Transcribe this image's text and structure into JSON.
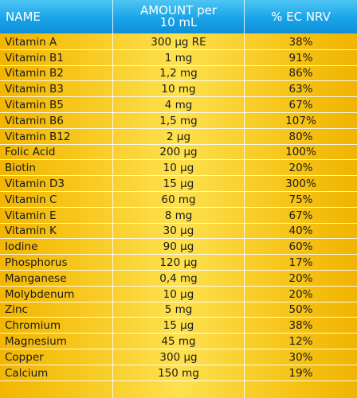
{
  "table": {
    "headers": {
      "name": "NAME",
      "amount": "AMOUNT per\n10 mL",
      "nrv": "% EC NRV"
    },
    "rows": [
      {
        "name": "Vitamin A",
        "amount": "300 µg RE",
        "nrv": "38%"
      },
      {
        "name": "Vitamin B1",
        "amount": "1 mg",
        "nrv": "91%"
      },
      {
        "name": "Vitamin B2",
        "amount": "1,2 mg",
        "nrv": "86%"
      },
      {
        "name": "Vitamin B3",
        "amount": "10 mg",
        "nrv": "63%"
      },
      {
        "name": "Vitamin B5",
        "amount": "4 mg",
        "nrv": "67%"
      },
      {
        "name": "Vitamin B6",
        "amount": "1,5 mg",
        "nrv": "107%"
      },
      {
        "name": "Vitamin B12",
        "amount": "2 µg",
        "nrv": "80%"
      },
      {
        "name": "Folic Acid",
        "amount": "200 µg",
        "nrv": "100%"
      },
      {
        "name": "Biotin",
        "amount": "10 µg",
        "nrv": "20%"
      },
      {
        "name": "Vitamin D3",
        "amount": "15 µg",
        "nrv": "300%"
      },
      {
        "name": "Vitamin C",
        "amount": "60 mg",
        "nrv": "75%"
      },
      {
        "name": "Vitamin E",
        "amount": "8 mg",
        "nrv": "67%"
      },
      {
        "name": "Vitamin K",
        "amount": "30 µg",
        "nrv": "40%"
      },
      {
        "name": "Iodine",
        "amount": "90 µg",
        "nrv": "60%"
      },
      {
        "name": "Phosphorus",
        "amount": "120 µg",
        "nrv": "17%"
      },
      {
        "name": "Manganese",
        "amount": "0,4 mg",
        "nrv": "20%"
      },
      {
        "name": "Molybdenum",
        "amount": "10 µg",
        "nrv": "20%"
      },
      {
        "name": "Zinc",
        "amount": "5 mg",
        "nrv": "50%"
      },
      {
        "name": "Chromium",
        "amount": "15 µg",
        "nrv": "38%"
      },
      {
        "name": "Magnesium",
        "amount": "45 mg",
        "nrv": "12%"
      },
      {
        "name": "Copper",
        "amount": "300 µg",
        "nrv": "30%"
      },
      {
        "name": "Calcium",
        "amount": "150 mg",
        "nrv": "19%"
      }
    ]
  }
}
